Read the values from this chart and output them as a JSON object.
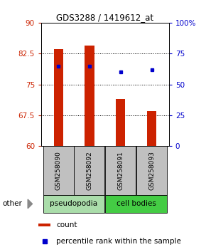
{
  "title": "GDS3288 / 1419612_at",
  "samples": [
    "GSM258090",
    "GSM258092",
    "GSM258091",
    "GSM258093"
  ],
  "bar_values": [
    83.5,
    84.5,
    71.5,
    68.5
  ],
  "dot_values": [
    79.5,
    79.5,
    78.0,
    78.5
  ],
  "ylim_left": [
    60,
    90
  ],
  "ylim_right": [
    0,
    100
  ],
  "yticks_left": [
    60,
    67.5,
    75,
    82.5,
    90
  ],
  "yticks_right": [
    0,
    25,
    50,
    75,
    100
  ],
  "ytick_labels_right": [
    "0",
    "25",
    "50",
    "75",
    "100%"
  ],
  "bar_color": "#cc2200",
  "dot_color": "#0000cc",
  "bar_width": 0.3,
  "label_color_left": "#cc2200",
  "label_color_right": "#0000cc",
  "sample_bg_color": "#c0c0c0",
  "group_info": [
    {
      "label": "pseudopodia",
      "color": "#aaddaa",
      "indices": [
        0,
        1
      ]
    },
    {
      "label": "cell bodies",
      "color": "#44cc44",
      "indices": [
        2,
        3
      ]
    }
  ]
}
